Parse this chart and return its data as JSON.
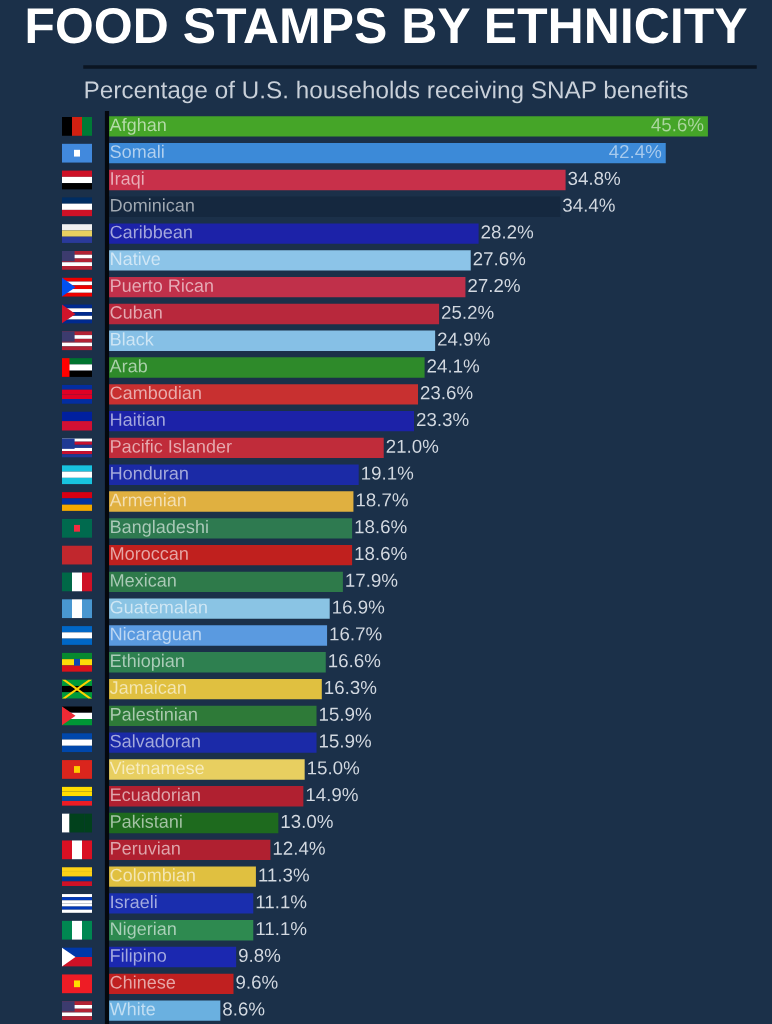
{
  "chart_data": {
    "type": "bar",
    "orientation": "horizontal",
    "title": "FOOD STAMPS BY ETHNICITY",
    "subtitle": "Percentage of U.S. households receiving SNAP benefits",
    "categories": [
      "Afghan",
      "Somali",
      "Iraqi",
      "Dominican",
      "Caribbean",
      "Native",
      "Puerto Rican",
      "Cuban",
      "Black",
      "Arab",
      "Cambodian",
      "Haitian",
      "Pacific Islander",
      "Honduran",
      "Armenian",
      "Bangladeshi",
      "Moroccan",
      "Mexican",
      "Guatemalan",
      "Nicaraguan",
      "Ethiopian",
      "Jamaican",
      "Palestinian",
      "Salvadoran",
      "Vietnamese",
      "Ecuadorian",
      "Pakistani",
      "Peruvian",
      "Colombian",
      "Israeli",
      "Nigerian",
      "Filipino",
      "Chinese",
      "White"
    ],
    "values": [
      45.6,
      42.4,
      34.8,
      34.4,
      28.2,
      27.6,
      27.2,
      25.2,
      24.9,
      24.1,
      23.6,
      23.3,
      21.0,
      19.1,
      18.7,
      18.6,
      18.6,
      17.9,
      16.9,
      16.7,
      16.6,
      16.3,
      15.9,
      15.9,
      15.0,
      14.9,
      13.0,
      12.4,
      11.3,
      11.1,
      11.1,
      9.8,
      9.6,
      8.6
    ],
    "value_labels": [
      "45.6%",
      "42.4%",
      "34.8%",
      "34.4%",
      "28.2%",
      "27.6%",
      "27.2%",
      "25.2%",
      "24.9%",
      "24.1%",
      "23.6%",
      "23.3%",
      "21.0%",
      "19.1%",
      "18.7%",
      "18.6%",
      "18.6%",
      "17.9%",
      "16.9%",
      "16.7%",
      "16.6%",
      "16.3%",
      "15.9%",
      "15.9%",
      "15.0%",
      "14.9%",
      "13.0%",
      "12.4%",
      "11.3%",
      "11.1%",
      "11.1%",
      "9.8%",
      "9.6%",
      "8.6%"
    ],
    "colors": [
      "#45a528",
      "#3c8ad8",
      "#c8304a",
      "#15283f",
      "#1c22a8",
      "#8cc4e8",
      "#c0304a",
      "#b8283c",
      "#86c0e6",
      "#2e8a2a",
      "#c83030",
      "#1c22a8",
      "#c02c3a",
      "#1b2aa6",
      "#e0b040",
      "#2e7a50",
      "#c0201e",
      "#2e7a4a",
      "#8ac4e4",
      "#5a9ae0",
      "#2e8050",
      "#e0c040",
      "#2e7a38",
      "#1b2aa8",
      "#e8cf60",
      "#b02030",
      "#1e6a1e",
      "#b02030",
      "#e0c040",
      "#1a2eae",
      "#2e8a50",
      "#1b28b0",
      "#c02020",
      "#6ab0e0"
    ],
    "tick_labels": false
  }
}
